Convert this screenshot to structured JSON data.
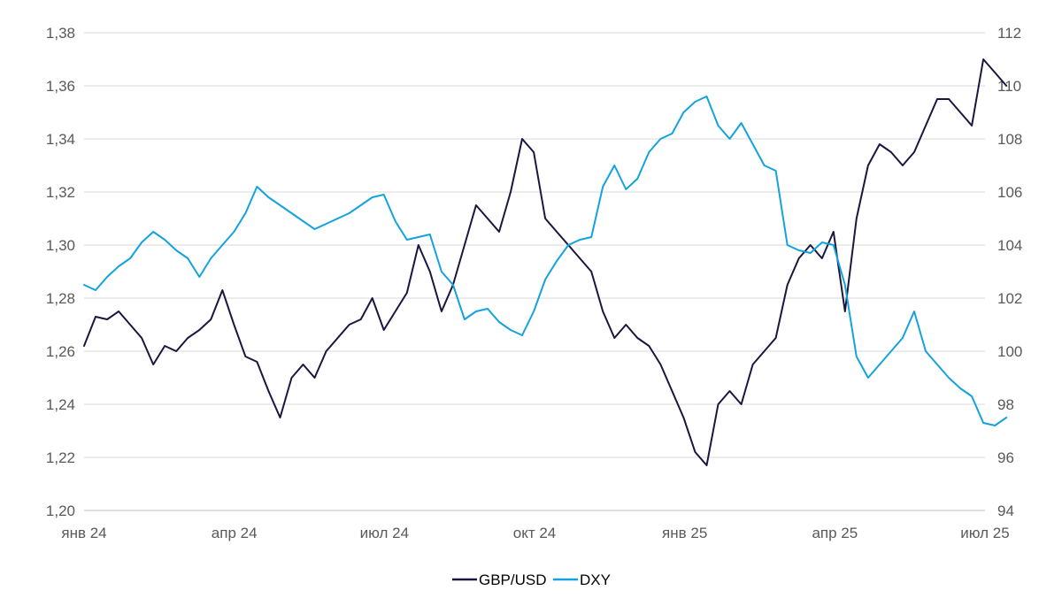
{
  "chart_data": {
    "type": "line",
    "title": "",
    "xlabel": "",
    "ylabel": "",
    "x_tick_labels": [
      "янв 24",
      "апр 24",
      "июл 24",
      "окт 24",
      "янв 25",
      "апр 25",
      "июл 25"
    ],
    "x_range": [
      "2024-01",
      "2025-07"
    ],
    "y_left": {
      "ylim": [
        1.2,
        1.38
      ],
      "ticks": [
        "1,20",
        "1,22",
        "1,24",
        "1,26",
        "1,28",
        "1,30",
        "1,32",
        "1,34",
        "1,36",
        "1,38"
      ]
    },
    "y_right": {
      "ylim": [
        94,
        112
      ],
      "ticks": [
        "94",
        "96",
        "98",
        "100",
        "102",
        "104",
        "106",
        "108",
        "110",
        "112"
      ]
    },
    "grid": true,
    "legend_position": "bottom",
    "series": [
      {
        "name": "GBP/USD",
        "axis": "left",
        "color": "#1b1640",
        "points": [
          [
            "2024-01-01",
            1.262
          ],
          [
            "2024-01-08",
            1.273
          ],
          [
            "2024-01-15",
            1.272
          ],
          [
            "2024-01-22",
            1.275
          ],
          [
            "2024-01-29",
            1.27
          ],
          [
            "2024-02-05",
            1.265
          ],
          [
            "2024-02-12",
            1.255
          ],
          [
            "2024-02-19",
            1.262
          ],
          [
            "2024-02-26",
            1.26
          ],
          [
            "2024-03-04",
            1.265
          ],
          [
            "2024-03-11",
            1.268
          ],
          [
            "2024-03-18",
            1.272
          ],
          [
            "2024-03-25",
            1.283
          ],
          [
            "2024-04-01",
            1.27
          ],
          [
            "2024-04-08",
            1.258
          ],
          [
            "2024-04-15",
            1.256
          ],
          [
            "2024-04-22",
            1.245
          ],
          [
            "2024-04-29",
            1.235
          ],
          [
            "2024-05-06",
            1.25
          ],
          [
            "2024-05-13",
            1.255
          ],
          [
            "2024-05-20",
            1.25
          ],
          [
            "2024-05-27",
            1.26
          ],
          [
            "2024-06-03",
            1.265
          ],
          [
            "2024-06-10",
            1.27
          ],
          [
            "2024-06-17",
            1.272
          ],
          [
            "2024-06-24",
            1.28
          ],
          [
            "2024-07-01",
            1.268
          ],
          [
            "2024-07-08",
            1.275
          ],
          [
            "2024-07-15",
            1.282
          ],
          [
            "2024-07-22",
            1.3
          ],
          [
            "2024-07-29",
            1.29
          ],
          [
            "2024-08-05",
            1.275
          ],
          [
            "2024-08-12",
            1.285
          ],
          [
            "2024-08-19",
            1.3
          ],
          [
            "2024-08-26",
            1.315
          ],
          [
            "2024-09-02",
            1.31
          ],
          [
            "2024-09-09",
            1.305
          ],
          [
            "2024-09-16",
            1.32
          ],
          [
            "2024-09-23",
            1.34
          ],
          [
            "2024-09-30",
            1.335
          ],
          [
            "2024-10-07",
            1.31
          ],
          [
            "2024-10-14",
            1.305
          ],
          [
            "2024-10-21",
            1.3
          ],
          [
            "2024-10-28",
            1.295
          ],
          [
            "2024-11-04",
            1.29
          ],
          [
            "2024-11-11",
            1.275
          ],
          [
            "2024-11-18",
            1.265
          ],
          [
            "2024-11-25",
            1.27
          ],
          [
            "2024-12-02",
            1.265
          ],
          [
            "2024-12-09",
            1.262
          ],
          [
            "2024-12-16",
            1.255
          ],
          [
            "2024-12-23",
            1.245
          ],
          [
            "2024-12-30",
            1.235
          ],
          [
            "2025-01-06",
            1.222
          ],
          [
            "2025-01-13",
            1.217
          ],
          [
            "2025-01-20",
            1.24
          ],
          [
            "2025-01-27",
            1.245
          ],
          [
            "2025-02-03",
            1.24
          ],
          [
            "2025-02-10",
            1.255
          ],
          [
            "2025-02-17",
            1.26
          ],
          [
            "2025-02-24",
            1.265
          ],
          [
            "2025-03-03",
            1.285
          ],
          [
            "2025-03-10",
            1.295
          ],
          [
            "2025-03-17",
            1.3
          ],
          [
            "2025-03-24",
            1.295
          ],
          [
            "2025-03-31",
            1.305
          ],
          [
            "2025-04-07",
            1.275
          ],
          [
            "2025-04-14",
            1.31
          ],
          [
            "2025-04-21",
            1.33
          ],
          [
            "2025-04-28",
            1.338
          ],
          [
            "2025-05-05",
            1.335
          ],
          [
            "2025-05-12",
            1.33
          ],
          [
            "2025-05-19",
            1.335
          ],
          [
            "2025-05-26",
            1.345
          ],
          [
            "2025-06-02",
            1.355
          ],
          [
            "2025-06-09",
            1.355
          ],
          [
            "2025-06-16",
            1.35
          ],
          [
            "2025-06-23",
            1.345
          ],
          [
            "2025-06-30",
            1.37
          ],
          [
            "2025-07-07",
            1.365
          ],
          [
            "2025-07-14",
            1.36
          ]
        ]
      },
      {
        "name": "DXY",
        "axis": "right",
        "color": "#13a3dc",
        "points": [
          [
            "2024-01-01",
            102.5
          ],
          [
            "2024-01-08",
            102.3
          ],
          [
            "2024-01-15",
            102.8
          ],
          [
            "2024-01-22",
            103.2
          ],
          [
            "2024-01-29",
            103.5
          ],
          [
            "2024-02-05",
            104.1
          ],
          [
            "2024-02-12",
            104.5
          ],
          [
            "2024-02-19",
            104.2
          ],
          [
            "2024-02-26",
            103.8
          ],
          [
            "2024-03-04",
            103.5
          ],
          [
            "2024-03-11",
            102.8
          ],
          [
            "2024-03-18",
            103.5
          ],
          [
            "2024-03-25",
            104.0
          ],
          [
            "2024-04-01",
            104.5
          ],
          [
            "2024-04-08",
            105.2
          ],
          [
            "2024-04-15",
            106.2
          ],
          [
            "2024-04-22",
            105.8
          ],
          [
            "2024-04-29",
            105.5
          ],
          [
            "2024-05-06",
            105.2
          ],
          [
            "2024-05-13",
            104.9
          ],
          [
            "2024-05-20",
            104.6
          ],
          [
            "2024-05-27",
            104.8
          ],
          [
            "2024-06-03",
            105.0
          ],
          [
            "2024-06-10",
            105.2
          ],
          [
            "2024-06-17",
            105.5
          ],
          [
            "2024-06-24",
            105.8
          ],
          [
            "2024-07-01",
            105.9
          ],
          [
            "2024-07-08",
            104.9
          ],
          [
            "2024-07-15",
            104.2
          ],
          [
            "2024-07-22",
            104.3
          ],
          [
            "2024-07-29",
            104.4
          ],
          [
            "2024-08-05",
            103.0
          ],
          [
            "2024-08-12",
            102.5
          ],
          [
            "2024-08-19",
            101.2
          ],
          [
            "2024-08-26",
            101.5
          ],
          [
            "2024-09-02",
            101.6
          ],
          [
            "2024-09-09",
            101.1
          ],
          [
            "2024-09-16",
            100.8
          ],
          [
            "2024-09-23",
            100.6
          ],
          [
            "2024-09-30",
            101.5
          ],
          [
            "2024-10-07",
            102.7
          ],
          [
            "2024-10-14",
            103.4
          ],
          [
            "2024-10-21",
            104.0
          ],
          [
            "2024-10-28",
            104.2
          ],
          [
            "2024-11-04",
            104.3
          ],
          [
            "2024-11-11",
            106.2
          ],
          [
            "2024-11-18",
            107.0
          ],
          [
            "2024-11-25",
            106.1
          ],
          [
            "2024-12-02",
            106.5
          ],
          [
            "2024-12-09",
            107.5
          ],
          [
            "2024-12-16",
            108.0
          ],
          [
            "2024-12-23",
            108.2
          ],
          [
            "2024-12-30",
            109.0
          ],
          [
            "2025-01-06",
            109.4
          ],
          [
            "2025-01-13",
            109.6
          ],
          [
            "2025-01-20",
            108.5
          ],
          [
            "2025-01-27",
            108.0
          ],
          [
            "2025-02-03",
            108.6
          ],
          [
            "2025-02-10",
            107.8
          ],
          [
            "2025-02-17",
            107.0
          ],
          [
            "2025-02-24",
            106.8
          ],
          [
            "2025-03-03",
            104.0
          ],
          [
            "2025-03-10",
            103.8
          ],
          [
            "2025-03-17",
            103.7
          ],
          [
            "2025-03-24",
            104.1
          ],
          [
            "2025-03-31",
            104.0
          ],
          [
            "2025-04-07",
            102.5
          ],
          [
            "2025-04-14",
            99.8
          ],
          [
            "2025-04-21",
            99.0
          ],
          [
            "2025-04-28",
            99.5
          ],
          [
            "2025-05-05",
            100.0
          ],
          [
            "2025-05-12",
            100.5
          ],
          [
            "2025-05-19",
            101.5
          ],
          [
            "2025-05-26",
            100.0
          ],
          [
            "2025-06-02",
            99.5
          ],
          [
            "2025-06-09",
            99.0
          ],
          [
            "2025-06-16",
            98.6
          ],
          [
            "2025-06-23",
            98.3
          ],
          [
            "2025-06-30",
            97.3
          ],
          [
            "2025-07-07",
            97.2
          ],
          [
            "2025-07-14",
            97.5
          ]
        ]
      }
    ]
  }
}
